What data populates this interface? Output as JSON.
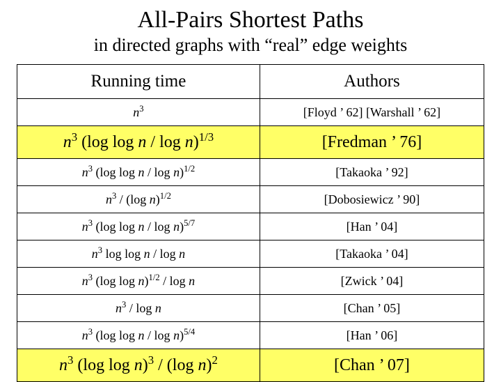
{
  "title": "All-Pairs Shortest Paths",
  "subtitle": "in directed graphs with “real” edge weights",
  "headers": {
    "col1": "Running time",
    "col2": "Authors"
  },
  "rows": [
    {
      "rt_html": "<span class='n'>n</span><sup>3</sup>",
      "auth": "[Floyd ’ 62] [Warshall ’ 62]",
      "hl": false
    },
    {
      "rt_html": "<span class='n'>n</span><sup>3</sup> (log log <span class='n'>n</span> / log <span class='n'>n</span>)<sup>1/3</sup>",
      "auth": "[Fredman ’ 76]",
      "hl": true
    },
    {
      "rt_html": "<span class='n'>n</span><sup>3</sup> (log log <span class='n'>n</span> / log <span class='n'>n</span>)<sup>1/2</sup>",
      "auth": "[Takaoka ’ 92]",
      "hl": false
    },
    {
      "rt_html": "<span class='n'>n</span><sup>3</sup> / (log <span class='n'>n</span>)<sup>1/2</sup>",
      "auth": "[Dobosiewicz ’ 90]",
      "hl": false
    },
    {
      "rt_html": "<span class='n'>n</span><sup>3</sup> (log log <span class='n'>n</span> / log <span class='n'>n</span>)<sup>5/7</sup>",
      "auth": "[Han ’ 04]",
      "hl": false
    },
    {
      "rt_html": "<span class='n'>n</span><sup>3</sup> log log <span class='n'>n</span> / log <span class='n'>n</span>",
      "auth": "[Takaoka ’ 04]",
      "hl": false
    },
    {
      "rt_html": "<span class='n'>n</span><sup>3</sup> (log log <span class='n'>n</span>)<sup>1/2</sup> / log <span class='n'>n</span>",
      "auth": "[Zwick ’ 04]",
      "hl": false
    },
    {
      "rt_html": "<span class='n'>n</span><sup>3</sup> / log <span class='n'>n</span>",
      "auth": "[Chan ’ 05]",
      "hl": false
    },
    {
      "rt_html": "<span class='n'>n</span><sup>3</sup> (log log <span class='n'>n</span> / log <span class='n'>n</span>)<sup>5/4</sup>",
      "auth": "[Han ’ 06]",
      "hl": false
    },
    {
      "rt_html": "<span class='n'>n</span><sup>3</sup> (log log <span class='n'>n</span>)<sup>3</sup> / (log <span class='n'>n</span>)<sup>2</sup>",
      "auth": "[Chan ’ 07]",
      "hl": true
    }
  ],
  "style": {
    "highlight_bg": "#ffff66",
    "border_color": "#000000",
    "background": "#ffffff",
    "title_fontsize": 34,
    "subtitle_fontsize": 26,
    "header_fontsize": 25,
    "row_fontsize": 18,
    "hl_fontsize": 24
  }
}
